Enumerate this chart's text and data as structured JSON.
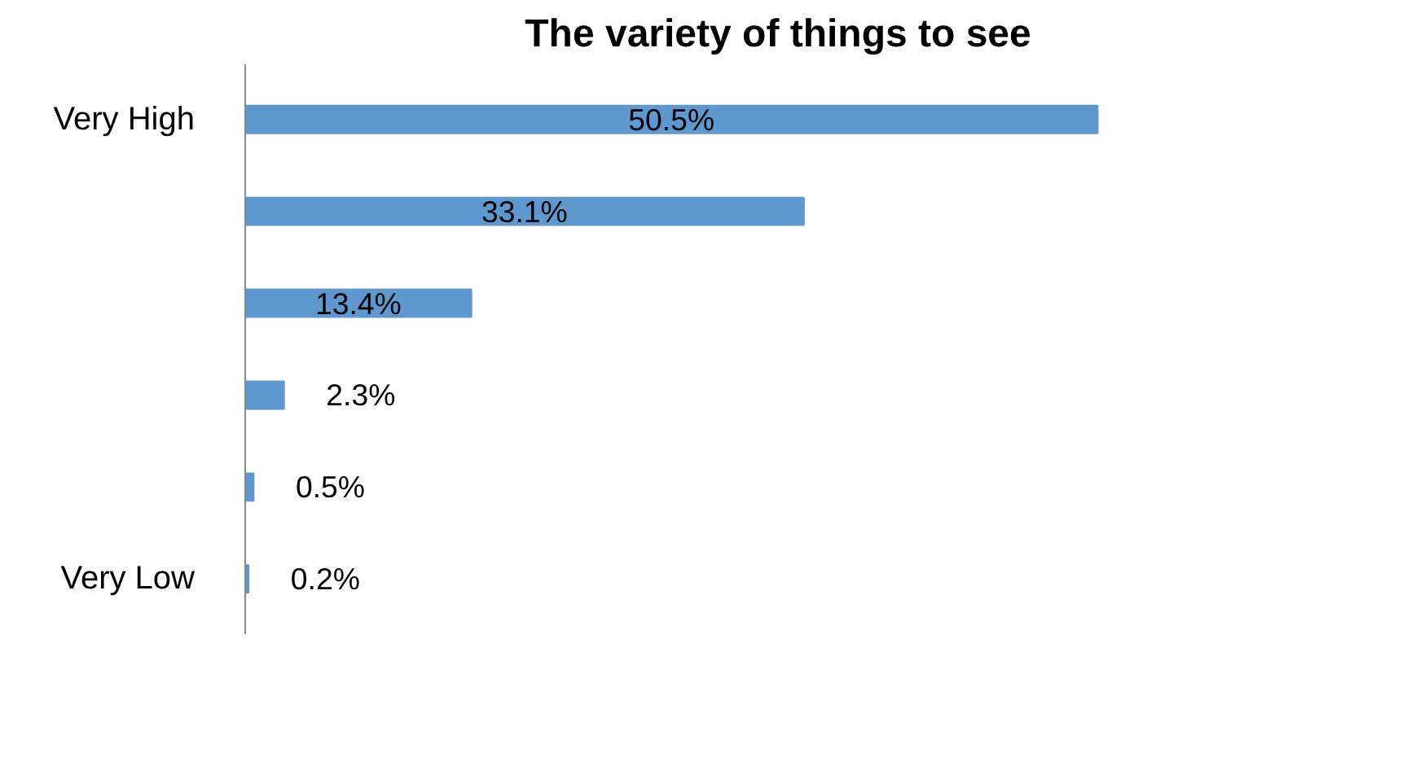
{
  "chart_data": {
    "type": "bar",
    "orientation": "horizontal",
    "title": "The variety of things to see",
    "categories": [
      "Very High",
      null,
      null,
      null,
      null,
      "Very Low"
    ],
    "values": [
      50.5,
      33.1,
      13.4,
      2.3,
      0.5,
      0.2
    ],
    "value_labels": [
      "50.5%",
      "33.1%",
      "13.4%",
      "2.3%",
      "0.5%",
      "0.2%"
    ],
    "color": "#5f97cf"
  }
}
